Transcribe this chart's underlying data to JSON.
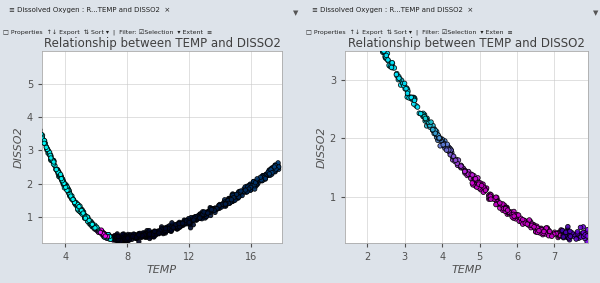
{
  "title": "Relationship between TEMP and DISSO2",
  "xlabel": "TEMP",
  "ylabel": "DISSO2",
  "panel1": {
    "xlim": [
      2.5,
      18.0
    ],
    "ylim": [
      0.2,
      6.0
    ],
    "xticks": [
      4,
      8,
      12,
      16
    ],
    "yticks": [
      1,
      2,
      3,
      4,
      5
    ]
  },
  "panel2": {
    "xlim": [
      1.4,
      7.9
    ],
    "ylim": [
      0.2,
      3.5
    ],
    "xticks": [
      2,
      3,
      4,
      5,
      6,
      7
    ],
    "yticks": [
      1,
      2,
      3
    ]
  },
  "bg_color": "#dde3ea",
  "plot_bg": "#ffffff",
  "grid_color": "#c8c8c8",
  "title_color": "#404040",
  "axis_label_color": "#505050",
  "tick_color": "#505050",
  "tab_bg": "#d0dce8",
  "toolbar_bg": "#f0f0f0",
  "tab_text": "Dissolved Oxygen : R...TEMP and DISSO2",
  "toolbar1": "Properties   Export   Sort v    Filter: [v]Selection   Extent  =",
  "toolbar2": "Properties   Export   Sort v    Filter: [v]Selection   Exten  ="
}
